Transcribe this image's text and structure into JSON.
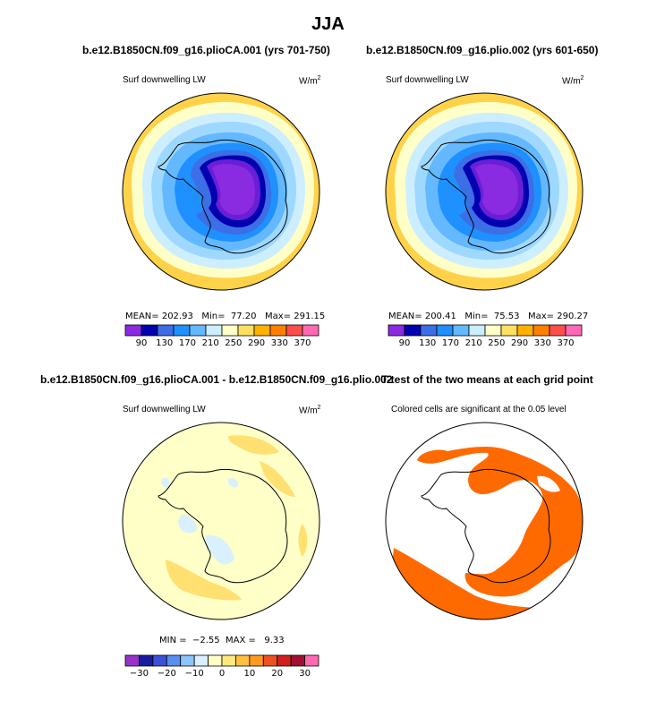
{
  "title": "JJA",
  "panels": [
    {
      "id": "p1",
      "header": "b.e12.B1850CN.f09_g16.plioCA.001 (yrs 701-750)",
      "left_label": "Surf downwelling LW",
      "units_base": "W/m",
      "units_exp": "2",
      "stats": "MEAN= 202.93   Min=  77.20   Max= 291.15",
      "colorbar": {
        "colors": [
          "#8a2be2",
          "#0000b0",
          "#3c6ee6",
          "#1e90ff",
          "#63b8ff",
          "#cceeff",
          "#ffffc8",
          "#ffe060",
          "#ffb000",
          "#ff7f00",
          "#ff4d4d",
          "#ff69b4"
        ],
        "ticks": [
          "90",
          "130",
          "170",
          "210",
          "250",
          "290",
          "330",
          "370"
        ]
      }
    },
    {
      "id": "p2",
      "header": "b.e12.B1850CN.f09_g16.plio.002 (yrs 601-650)",
      "left_label": "Surf downwelling LW",
      "units_base": "W/m",
      "units_exp": "2",
      "stats": "MEAN= 200.41   Min=  75.53   Max= 290.27",
      "colorbar": {
        "colors": [
          "#8a2be2",
          "#0000b0",
          "#3c6ee6",
          "#1e90ff",
          "#63b8ff",
          "#cceeff",
          "#ffffc8",
          "#ffe060",
          "#ffb000",
          "#ff7f00",
          "#ff4d4d",
          "#ff69b4"
        ],
        "ticks": [
          "90",
          "130",
          "170",
          "210",
          "250",
          "290",
          "330",
          "370"
        ]
      }
    },
    {
      "id": "p3",
      "header": "b.e12.B1850CN.f09_g16.plioCA.001 - b.e12.B1850CN.f09_g16.plio.002",
      "left_label": "Surf downwelling LW",
      "units_base": "W/m",
      "units_exp": "2",
      "stats": "MIN =  −2.55  MAX =   9.33",
      "colorbar": {
        "colors": [
          "#9932cc",
          "#1a1aa0",
          "#3c50d8",
          "#5a8ef0",
          "#8cc4ff",
          "#d8f0ff",
          "#ffffc8",
          "#ffe880",
          "#ffc040",
          "#ff9a20",
          "#f05020",
          "#d02020",
          "#a01030",
          "#ff69b4"
        ],
        "ticks": [
          "−30",
          "−20",
          "−10",
          "0",
          "10",
          "20",
          "30"
        ]
      }
    },
    {
      "id": "p4",
      "header": "T-test of the two means at each grid point",
      "left_label": "Colored cells are significant at the 0.05 level"
    }
  ],
  "chart_data": [
    {
      "type": "heatmap",
      "title": "b.e12.B1850CN.f09_g16.plioCA.001 (yrs 701-750)",
      "variable": "Surf downwelling LW",
      "units": "W/m2",
      "projection": "south polar stereographic",
      "season": "JJA",
      "mean": 202.93,
      "min": 77.2,
      "max": 291.15,
      "contour_levels": [
        90,
        110,
        130,
        150,
        170,
        190,
        210,
        230,
        250,
        270,
        290,
        310,
        330,
        350,
        370
      ]
    },
    {
      "type": "heatmap",
      "title": "b.e12.B1850CN.f09_g16.plio.002 (yrs 601-650)",
      "variable": "Surf downwelling LW",
      "units": "W/m2",
      "projection": "south polar stereographic",
      "season": "JJA",
      "mean": 200.41,
      "min": 75.53,
      "max": 290.27,
      "contour_levels": [
        90,
        110,
        130,
        150,
        170,
        190,
        210,
        230,
        250,
        270,
        290,
        310,
        330,
        350,
        370
      ]
    },
    {
      "type": "heatmap",
      "title": "b.e12.B1850CN.f09_g16.plioCA.001 - b.e12.B1850CN.f09_g16.plio.002",
      "variable": "Surf downwelling LW difference",
      "units": "W/m2",
      "projection": "south polar stereographic",
      "season": "JJA",
      "min": -2.55,
      "max": 9.33,
      "contour_levels": [
        -30,
        -25,
        -20,
        -15,
        -10,
        -5,
        0,
        5,
        10,
        15,
        20,
        25,
        30
      ]
    },
    {
      "type": "heatmap",
      "title": "T-test of the two means at each grid point",
      "subtitle": "Colored cells are significant at the 0.05 level",
      "significance_level": 0.05,
      "significant_color": "#ff6a00"
    }
  ]
}
